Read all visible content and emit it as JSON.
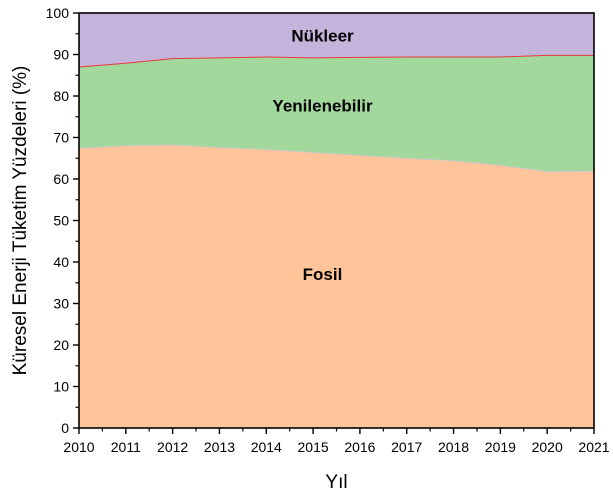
{
  "chart_data": {
    "type": "area",
    "stacked": true,
    "title": "",
    "xlabel": "Yıl",
    "ylabel": "Küresel Enerji Tüketim Yüzdeleri (%)",
    "xlim": [
      2010,
      2021
    ],
    "ylim": [
      0,
      100
    ],
    "x": [
      2010,
      2011,
      2012,
      2013,
      2014,
      2015,
      2016,
      2017,
      2018,
      2019,
      2020,
      2021
    ],
    "xticks": [
      "2010",
      "2011",
      "2012",
      "2013",
      "2014",
      "2015",
      "2016",
      "2017",
      "2018",
      "2019",
      "2020",
      "2021"
    ],
    "yticks": [
      "0",
      "10",
      "20",
      "30",
      "40",
      "50",
      "60",
      "70",
      "80",
      "90",
      "100"
    ],
    "grid": false,
    "legend": "none",
    "series": [
      {
        "name": "Fosil",
        "color": "#ffc499",
        "values": [
          67.4,
          68.0,
          68.2,
          67.6,
          67.1,
          66.4,
          65.7,
          65.0,
          64.4,
          63.3,
          61.8,
          61.9
        ]
      },
      {
        "name": "Yenilenebilir",
        "color": "#a2d89c",
        "values": [
          19.6,
          19.9,
          20.8,
          21.6,
          22.3,
          22.8,
          23.6,
          24.4,
          25.0,
          26.1,
          28.0,
          27.9
        ]
      },
      {
        "name": "Nükleer",
        "color": "#c4b4dc",
        "values": [
          13.0,
          12.1,
          11.0,
          10.8,
          10.6,
          10.8,
          10.7,
          10.6,
          10.6,
          10.6,
          10.2,
          10.2
        ]
      }
    ],
    "boundary_colors": [
      "#c8c8c8",
      "#e83a3a"
    ],
    "area_labels": [
      "Fosil",
      "Yenilenebilir",
      "Nükleer"
    ]
  }
}
